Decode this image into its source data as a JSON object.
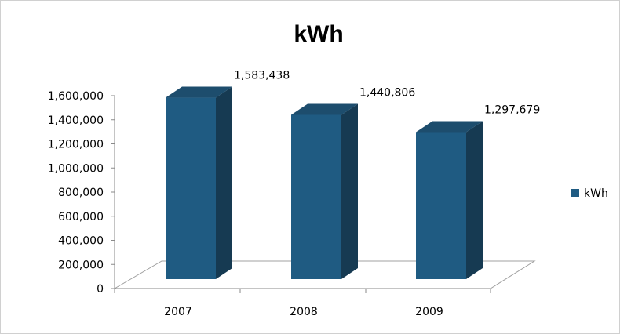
{
  "chart_data": {
    "type": "bar",
    "title": "kWh",
    "categories": [
      "2007",
      "2008",
      "2009"
    ],
    "series": [
      {
        "name": "kWh",
        "values": [
          1583438,
          1440806,
          1297679
        ],
        "data_labels": [
          "1,583,438",
          "1,440,806",
          "1,297,679"
        ]
      }
    ],
    "ylim": [
      0,
      1600000
    ],
    "y_ticks": [
      "0",
      "200,000",
      "400,000",
      "600,000",
      "800,000",
      "1,000,000",
      "1,200,000",
      "1,400,000",
      "1,600,000"
    ],
    "y_tick_values": [
      0,
      200000,
      400000,
      600000,
      800000,
      1000000,
      1200000,
      1400000,
      1600000
    ],
    "legend_position": "right",
    "grid": false,
    "style": "3d-column",
    "colors": {
      "bar_front": "#1f5b82",
      "bar_side": "#163a52",
      "bar_top": "#1d4d6d",
      "axis": "#8a8a8a",
      "floor": "#a0a0a0"
    }
  }
}
